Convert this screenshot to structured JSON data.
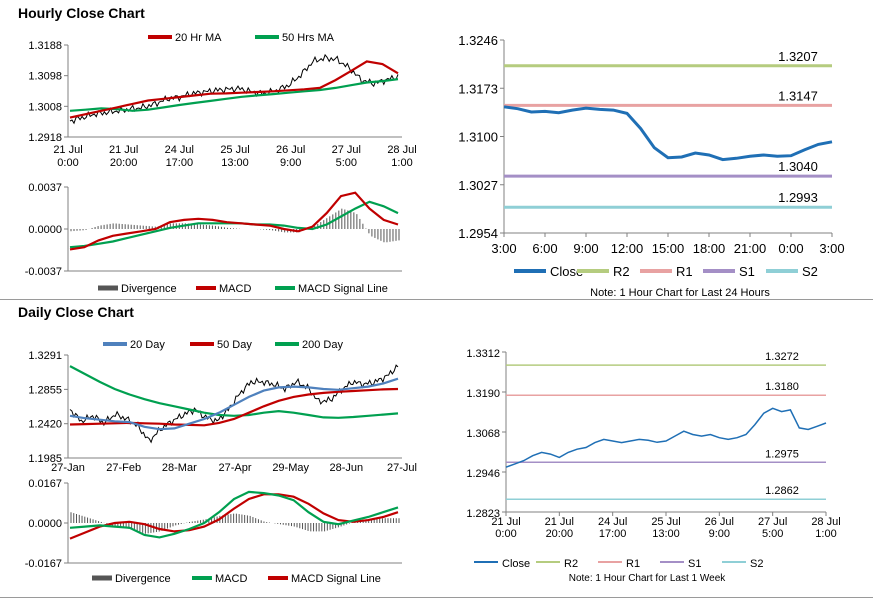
{
  "sections": {
    "hourly_title": "Hourly Close Chart",
    "daily_title": "Daily Close Chart"
  },
  "chart_data": [
    {
      "id": "hourly_price",
      "type": "line",
      "legend": [
        "20 Hr MA",
        "50 Hrs MA"
      ],
      "colors": {
        "ma20": "#c00000",
        "ma50": "#00a050",
        "price": "#000000"
      },
      "x_ticks": [
        "21 Jul\n0:00",
        "21 Jul\n20:00",
        "24 Jul\n17:00",
        "25 Jul\n13:00",
        "26 Jul\n9:00",
        "27 Jul\n5:00",
        "28 Jul\n1:00"
      ],
      "y_ticks": [
        "1.3188",
        "1.3098",
        "1.3008",
        "1.2918"
      ],
      "ylim": [
        1.2918,
        1.3188
      ],
      "series": [
        {
          "name": "20 Hr MA",
          "values": [
            1.2975,
            1.2985,
            1.2995,
            1.3005,
            1.3015,
            1.3025,
            1.303,
            1.3035,
            1.304,
            1.3045,
            1.3046,
            1.3048,
            1.305,
            1.3052,
            1.3055,
            1.3058,
            1.3062,
            1.3085,
            1.3112,
            1.314,
            1.3132,
            1.3105
          ]
        },
        {
          "name": "50 Hrs MA",
          "values": [
            1.2995,
            1.2998,
            1.3002,
            1.3,
            1.2995,
            1.2998,
            1.3005,
            1.3012,
            1.3018,
            1.3024,
            1.303,
            1.3036,
            1.304,
            1.3044,
            1.3048,
            1.3052,
            1.3056,
            1.3062,
            1.307,
            1.3078,
            1.3082,
            1.3088
          ]
        },
        {
          "name": "Close",
          "values": [
            1.2965,
            1.2975,
            1.2985,
            1.299,
            1.2995,
            1.3,
            1.3005,
            1.3015,
            1.303,
            1.3035,
            1.3045,
            1.305,
            1.3055,
            1.3058,
            1.306,
            1.305,
            1.3045,
            1.3055,
            1.307,
            1.31,
            1.314,
            1.315,
            1.3145,
            1.312,
            1.3085,
            1.3075,
            1.3085,
            1.3095
          ]
        }
      ]
    },
    {
      "id": "hourly_macd",
      "type": "line",
      "legend": [
        "Divergence",
        "MACD",
        "MACD Signal Line"
      ],
      "colors": {
        "divergence": "#555555",
        "macd": "#c00000",
        "signal": "#00a050"
      },
      "y_ticks": [
        "0.0037",
        "0.0000",
        "-0.0037"
      ],
      "ylim": [
        -0.0037,
        0.0037
      ],
      "series": [
        {
          "name": "MACD",
          "values": [
            -0.0018,
            -0.0016,
            -0.001,
            -0.0006,
            -0.0004,
            -0.0002,
            0.0,
            0.0006,
            0.0008,
            0.0009,
            0.0008,
            0.0006,
            0.0005,
            0.0004,
            0.0003,
            0.0,
            -0.0002,
            0.0002,
            0.0014,
            0.0029,
            0.0032,
            0.0018,
            0.0008,
            0.0004
          ]
        },
        {
          "name": "MACD Signal Line",
          "values": [
            -0.0016,
            -0.0015,
            -0.0013,
            -0.0011,
            -0.0008,
            -0.0005,
            -0.0002,
            0.0001,
            0.0003,
            0.0005,
            0.0005,
            0.0005,
            0.0005,
            0.0004,
            0.0004,
            0.0003,
            0.0001,
            0.0,
            0.0004,
            0.0011,
            0.0018,
            0.0024,
            0.002,
            0.0014
          ]
        },
        {
          "name": "Divergence",
          "values": [
            -0.0002,
            -0.0001,
            0.0003,
            0.0005,
            0.0004,
            0.0003,
            0.0002,
            0.0005,
            0.0005,
            0.0004,
            0.0003,
            0.0001,
            0.0,
            0.0,
            -0.0001,
            -0.0003,
            -0.0003,
            0.0002,
            0.001,
            0.0018,
            0.0014,
            -0.0006,
            -0.0012,
            -0.001
          ]
        }
      ]
    },
    {
      "id": "pivot_24h",
      "type": "line",
      "x_ticks": [
        "3:00",
        "6:00",
        "9:00",
        "12:00",
        "15:00",
        "18:00",
        "21:00",
        "0:00",
        "3:00"
      ],
      "y_ticks": [
        "1.3246",
        "1.3173",
        "1.3100",
        "1.3027",
        "1.2954"
      ],
      "ylim": [
        1.2954,
        1.3246
      ],
      "legend": [
        "Close",
        "R2",
        "R1",
        "S1",
        "S2"
      ],
      "colors": {
        "close": "#1f6fb5",
        "r2": "#b5cc7f",
        "r1": "#e8a2a2",
        "s1": "#a48fc6",
        "s2": "#8fcfd6"
      },
      "levels": [
        {
          "name": "R2",
          "value": 1.3207,
          "label": "1.3207"
        },
        {
          "name": "R1",
          "value": 1.3147,
          "label": "1.3147"
        },
        {
          "name": "S1",
          "value": 1.304,
          "label": "1.3040"
        },
        {
          "name": "S2",
          "value": 1.2993,
          "label": "1.2993"
        }
      ],
      "series": [
        {
          "name": "Close",
          "values": [
            1.3145,
            1.3142,
            1.3137,
            1.3138,
            1.3136,
            1.314,
            1.3143,
            1.3141,
            1.314,
            1.3135,
            1.3112,
            1.3083,
            1.3068,
            1.3069,
            1.3075,
            1.3072,
            1.3065,
            1.3067,
            1.307,
            1.3072,
            1.307,
            1.3071,
            1.308,
            1.3088,
            1.3092
          ]
        }
      ],
      "note": "Note: 1 Hour Chart for Last 24 Hours"
    },
    {
      "id": "daily_price",
      "type": "line",
      "legend": [
        "20 Day",
        "50 Day",
        "200 Day"
      ],
      "colors": {
        "ma20": "#4f81bd",
        "ma50": "#c00000",
        "ma200": "#00a050",
        "price": "#000000"
      },
      "x_ticks": [
        "27-Jan",
        "27-Feb",
        "28-Mar",
        "27-Apr",
        "29-May",
        "28-Jun",
        "27-Jul"
      ],
      "y_ticks": [
        "1.3291",
        "1.2855",
        "1.2420",
        "1.1985"
      ],
      "ylim": [
        1.1985,
        1.3291
      ],
      "series": [
        {
          "name": "20 Day",
          "values": [
            1.252,
            1.249,
            1.247,
            1.245,
            1.244,
            1.238,
            1.235,
            1.236,
            1.242,
            1.248,
            1.256,
            1.266,
            1.276,
            1.284,
            1.288,
            1.289,
            1.288,
            1.286,
            1.285,
            1.287,
            1.289,
            1.293,
            1.299
          ]
        },
        {
          "name": "50 Day",
          "values": [
            1.241,
            1.2415,
            1.242,
            1.2425,
            1.243,
            1.2425,
            1.242,
            1.241,
            1.2405,
            1.24,
            1.243,
            1.248,
            1.256,
            1.264,
            1.271,
            1.276,
            1.279,
            1.281,
            1.2825,
            1.2835,
            1.2845,
            1.2855,
            1.286
          ]
        },
        {
          "name": "200 Day",
          "values": [
            1.315,
            1.305,
            1.295,
            1.286,
            1.279,
            1.273,
            1.268,
            1.264,
            1.26,
            1.256,
            1.253,
            1.252,
            1.253,
            1.256,
            1.258,
            1.256,
            1.253,
            1.25,
            1.2495,
            1.2505,
            1.252,
            1.2535,
            1.255
          ]
        },
        {
          "name": "Close",
          "values": [
            1.26,
            1.245,
            1.252,
            1.243,
            1.254,
            1.248,
            1.239,
            1.22,
            1.235,
            1.245,
            1.253,
            1.26,
            1.25,
            1.245,
            1.26,
            1.28,
            1.295,
            1.295,
            1.292,
            1.286,
            1.295,
            1.288,
            1.27,
            1.272,
            1.285,
            1.295,
            1.292,
            1.295,
            1.302,
            1.315
          ]
        }
      ]
    },
    {
      "id": "daily_macd",
      "type": "line",
      "legend": [
        "Divergence",
        "MACD",
        "MACD Signal Line"
      ],
      "colors": {
        "divergence": "#555555",
        "macd": "#00a050",
        "signal": "#c00000"
      },
      "y_ticks": [
        "0.0167",
        "0.0000",
        "-0.0167"
      ],
      "ylim": [
        -0.0167,
        0.0167
      ],
      "series": [
        {
          "name": "MACD",
          "values": [
            -0.002,
            -0.0015,
            -0.001,
            -0.0015,
            -0.002,
            -0.005,
            -0.006,
            -0.0045,
            -0.0025,
            0.0,
            0.0045,
            0.01,
            0.013,
            0.0125,
            0.0115,
            0.0095,
            0.0045,
            0.0005,
            -0.0005,
            0.001,
            0.0025,
            0.0045,
            0.0065
          ]
        },
        {
          "name": "MACD Signal Line",
          "values": [
            -0.0065,
            -0.004,
            -0.0015,
            0.0,
            0.0005,
            -0.0005,
            -0.0025,
            -0.0035,
            -0.003,
            -0.0015,
            0.0015,
            0.006,
            0.01,
            0.012,
            0.012,
            0.011,
            0.008,
            0.004,
            0.0012,
            0.0005,
            0.0012,
            0.0025,
            0.0045
          ]
        },
        {
          "name": "Divergence",
          "values": [
            0.0045,
            0.0025,
            0.0005,
            -0.0015,
            -0.0025,
            -0.0045,
            -0.0035,
            -0.001,
            0.0005,
            0.0015,
            0.003,
            0.004,
            0.003,
            0.0005,
            -0.0005,
            -0.0015,
            -0.0035,
            -0.0035,
            -0.0017,
            0.0005,
            0.0013,
            0.002,
            0.002
          ]
        }
      ]
    },
    {
      "id": "pivot_week",
      "type": "line",
      "x_ticks": [
        "21 Jul\n0:00",
        "21 Jul\n20:00",
        "24 Jul\n17:00",
        "25 Jul\n13:00",
        "26 Jul\n9:00",
        "27 Jul\n5:00",
        "28 Jul\n1:00"
      ],
      "y_ticks": [
        "1.3312",
        "1.3190",
        "1.3068",
        "1.2946",
        "1.2823"
      ],
      "ylim": [
        1.2823,
        1.3312
      ],
      "legend": [
        "Close",
        "R2",
        "R1",
        "S1",
        "S2"
      ],
      "colors": {
        "close": "#1f6fb5",
        "r2": "#b5cc7f",
        "r1": "#e8a2a2",
        "s1": "#a48fc6",
        "s2": "#8fcfd6"
      },
      "levels": [
        {
          "name": "R2",
          "value": 1.3272,
          "label": "1.3272"
        },
        {
          "name": "R1",
          "value": 1.318,
          "label": "1.3180"
        },
        {
          "name": "S1",
          "value": 1.2975,
          "label": "1.2975"
        },
        {
          "name": "S2",
          "value": 1.2862,
          "label": "1.2862"
        }
      ],
      "series": [
        {
          "name": "Close",
          "values": [
            1.296,
            1.297,
            1.298,
            1.2995,
            1.3005,
            1.3,
            1.299,
            1.3005,
            1.3015,
            1.302,
            1.3035,
            1.3045,
            1.304,
            1.3035,
            1.304,
            1.3045,
            1.3042,
            1.3036,
            1.304,
            1.3055,
            1.307,
            1.306,
            1.3055,
            1.306,
            1.305,
            1.3045,
            1.305,
            1.306,
            1.309,
            1.3125,
            1.314,
            1.313,
            1.3135,
            1.308,
            1.3075,
            1.3085,
            1.3095
          ]
        }
      ],
      "note": "Note: 1 Hour Chart for Last 1 Week"
    }
  ]
}
